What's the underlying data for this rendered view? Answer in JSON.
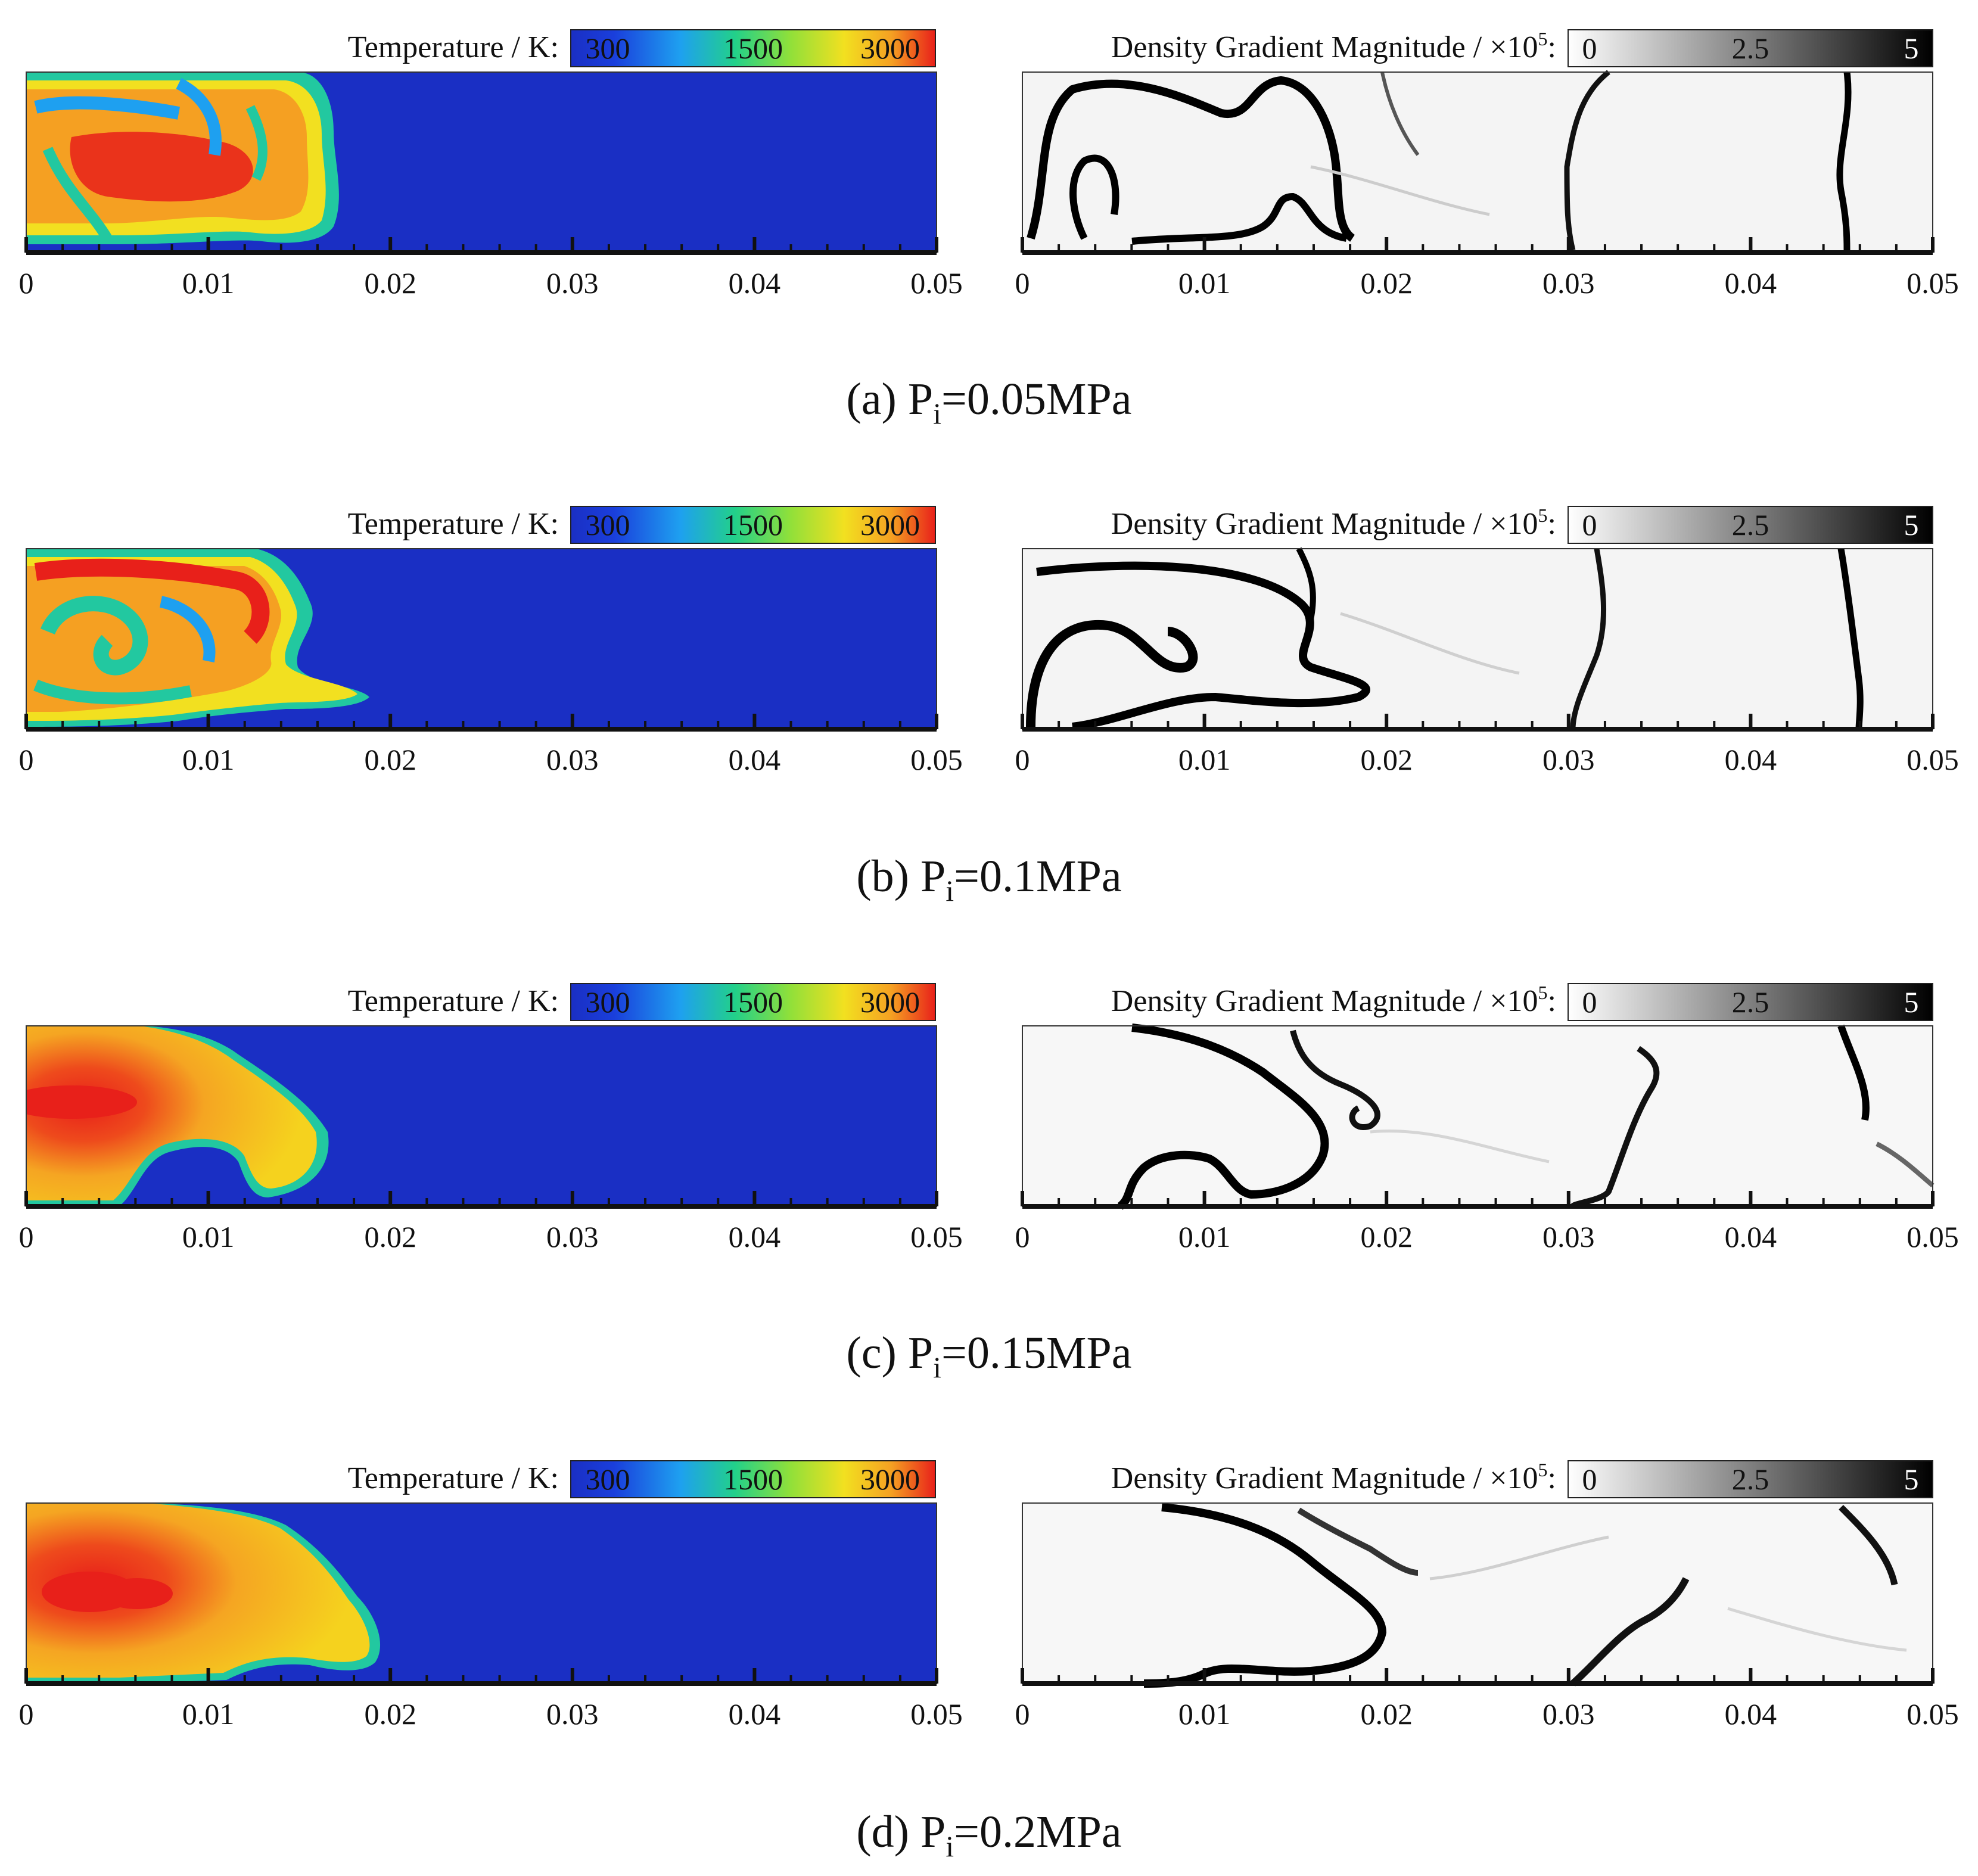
{
  "figure": {
    "rows": [
      {
        "caption": {
          "prefix": "(a) P",
          "sub": "i",
          "suffix": "=0.05MPa"
        },
        "temperature_plot": {
          "colorbar_label": "Temperature / K:",
          "colorbar_ticks": [
            "300",
            "1500",
            "3000"
          ]
        },
        "gradient_plot": {
          "colorbar_label": "Density Gradient Magnitude / ×10",
          "colorbar_exp": "5",
          "colorbar_suffix": ":",
          "colorbar_ticks": [
            "0",
            "2.5",
            "5"
          ]
        }
      },
      {
        "caption": {
          "prefix": "(b) P",
          "sub": "i",
          "suffix": "=0.1MPa"
        },
        "temperature_plot": {
          "colorbar_label": "Temperature / K:",
          "colorbar_ticks": [
            "300",
            "1500",
            "3000"
          ]
        },
        "gradient_plot": {
          "colorbar_label": "Density Gradient Magnitude / ×10",
          "colorbar_exp": "5",
          "colorbar_suffix": ":",
          "colorbar_ticks": [
            "0",
            "2.5",
            "5"
          ]
        }
      },
      {
        "caption": {
          "prefix": "(c) P",
          "sub": "i",
          "suffix": "=0.15MPa"
        },
        "temperature_plot": {
          "colorbar_label": "Temperature / K:",
          "colorbar_ticks": [
            "300",
            "1500",
            "3000"
          ]
        },
        "gradient_plot": {
          "colorbar_label": "Density Gradient Magnitude / ×10",
          "colorbar_exp": "5",
          "colorbar_suffix": ":",
          "colorbar_ticks": [
            "0",
            "2.5",
            "5"
          ]
        }
      },
      {
        "caption": {
          "prefix": "(d) P",
          "sub": "i",
          "suffix": "=0.2MPa"
        },
        "temperature_plot": {
          "colorbar_label": "Temperature / K:",
          "colorbar_ticks": [
            "300",
            "1500",
            "3000"
          ]
        },
        "gradient_plot": {
          "colorbar_label": "Density Gradient Magnitude / ×10",
          "colorbar_exp": "5",
          "colorbar_suffix": ":",
          "colorbar_ticks": [
            "0",
            "2.5",
            "5"
          ]
        }
      }
    ],
    "x_ticks": [
      "0",
      "0.01",
      "0.02",
      "0.03",
      "0.04",
      "0.05"
    ],
    "x_range": [
      0,
      0.05
    ],
    "colors": {
      "temp_cold": "#1a2fc4",
      "temp_mid": "#22c8a0",
      "temp_warm": "#f2e020",
      "temp_hot": "#e8201a",
      "gradient_low": "#ffffff",
      "gradient_high": "#000000"
    }
  }
}
